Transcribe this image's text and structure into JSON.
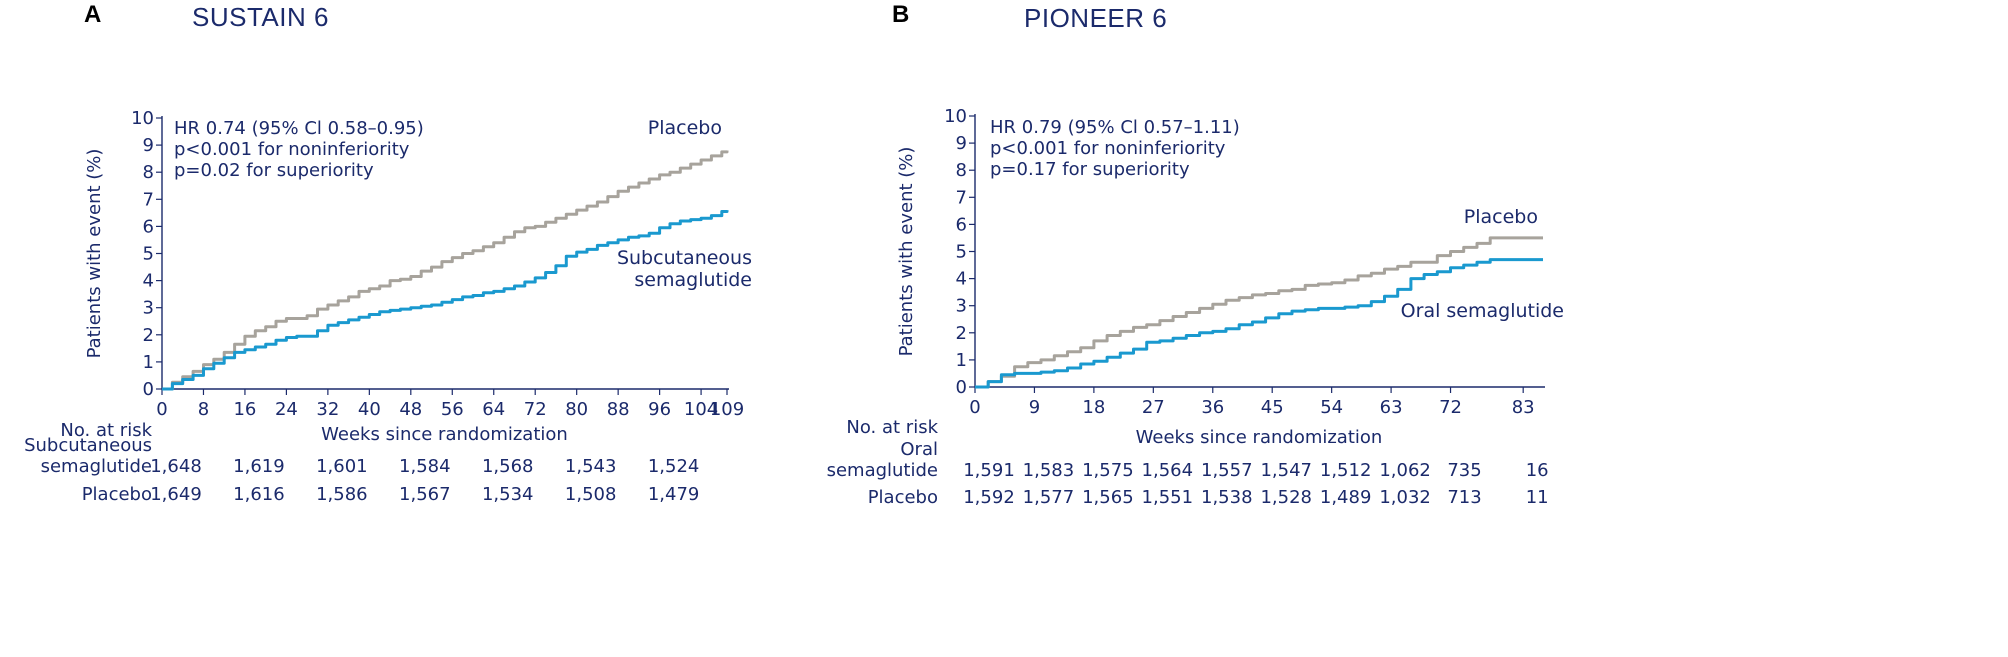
{
  "chart_data": [
    {
      "type": "line",
      "letter": "A",
      "title": "SUSTAIN 6",
      "xlabel": "Weeks since randomization",
      "ylabel": "Patients with event (%)",
      "xlim": [
        0,
        109
      ],
      "ylim": [
        0,
        10
      ],
      "xticks": [
        0,
        8,
        16,
        24,
        32,
        40,
        48,
        56,
        64,
        72,
        80,
        88,
        96,
        104,
        109
      ],
      "xtick_labels": [
        "0",
        "8",
        "16",
        "24",
        "32",
        "40",
        "48",
        "56",
        "64",
        "72",
        "80",
        "88",
        "96",
        "104",
        "109"
      ],
      "yticks": [
        0,
        1,
        2,
        3,
        4,
        5,
        6,
        7,
        8,
        9,
        10
      ],
      "ytick_labels": [
        "0",
        "1",
        "2",
        "3",
        "4",
        "5",
        "6",
        "7",
        "8",
        "9",
        "10"
      ],
      "annotations": [
        "HR 0.74 (95% Cl 0.58–0.95)",
        "p<0.001 for noninferiority",
        "p=0.02 for superiority"
      ],
      "series": [
        {
          "name": "Placebo",
          "label_lines": [
            "Placebo"
          ],
          "color": "#a7a39c",
          "x": [
            0,
            2,
            4,
            6,
            8,
            10,
            12,
            14,
            16,
            18,
            20,
            22,
            24,
            26,
            28,
            30,
            32,
            34,
            36,
            38,
            40,
            42,
            44,
            46,
            48,
            50,
            52,
            54,
            56,
            58,
            60,
            62,
            64,
            66,
            68,
            70,
            72,
            74,
            76,
            78,
            80,
            82,
            84,
            86,
            88,
            90,
            92,
            94,
            96,
            98,
            100,
            102,
            104,
            106,
            108,
            109
          ],
          "values": [
            0,
            0.25,
            0.45,
            0.65,
            0.9,
            1.1,
            1.35,
            1.65,
            1.95,
            2.15,
            2.3,
            2.5,
            2.6,
            2.6,
            2.7,
            2.95,
            3.1,
            3.25,
            3.4,
            3.6,
            3.7,
            3.8,
            4.0,
            4.05,
            4.15,
            4.35,
            4.5,
            4.7,
            4.85,
            5.0,
            5.1,
            5.25,
            5.4,
            5.6,
            5.8,
            5.95,
            6.0,
            6.15,
            6.3,
            6.45,
            6.6,
            6.75,
            6.9,
            7.1,
            7.3,
            7.45,
            7.6,
            7.75,
            7.9,
            8.0,
            8.15,
            8.3,
            8.45,
            8.6,
            8.75,
            8.8
          ]
        },
        {
          "name": "Subcutaneous semaglutide",
          "label_lines": [
            "Subcutaneous",
            "semaglutide"
          ],
          "color": "#1a99cf",
          "x": [
            0,
            2,
            4,
            6,
            8,
            10,
            12,
            14,
            16,
            18,
            20,
            22,
            24,
            26,
            28,
            30,
            32,
            34,
            36,
            38,
            40,
            42,
            44,
            46,
            48,
            50,
            52,
            54,
            56,
            58,
            60,
            62,
            64,
            66,
            68,
            70,
            72,
            74,
            76,
            78,
            80,
            82,
            84,
            86,
            88,
            90,
            92,
            94,
            96,
            98,
            100,
            102,
            104,
            106,
            108,
            109
          ],
          "values": [
            0,
            0.2,
            0.35,
            0.5,
            0.75,
            0.95,
            1.15,
            1.35,
            1.45,
            1.55,
            1.65,
            1.8,
            1.9,
            1.95,
            1.95,
            2.15,
            2.35,
            2.45,
            2.55,
            2.65,
            2.75,
            2.85,
            2.9,
            2.95,
            3.0,
            3.05,
            3.1,
            3.2,
            3.3,
            3.4,
            3.45,
            3.55,
            3.6,
            3.7,
            3.8,
            3.95,
            4.1,
            4.3,
            4.55,
            4.9,
            5.05,
            5.15,
            5.3,
            5.4,
            5.5,
            5.6,
            5.65,
            5.75,
            5.95,
            6.1,
            6.2,
            6.25,
            6.3,
            6.4,
            6.55,
            6.6
          ]
        }
      ],
      "risk_table": {
        "header": "No. at risk",
        "columns_x": [
          0,
          16,
          32,
          48,
          64,
          80,
          96
        ],
        "rows": [
          {
            "label_lines": [
              "Subcutaneous",
              "semaglutide"
            ],
            "values": [
              "1,648",
              "1,619",
              "1,601",
              "1,584",
              "1,568",
              "1,543",
              "1,524"
            ]
          },
          {
            "label_lines": [
              "Placebo"
            ],
            "values": [
              "1,649",
              "1,616",
              "1,586",
              "1,567",
              "1,534",
              "1,508",
              "1,479"
            ]
          }
        ]
      }
    },
    {
      "type": "line",
      "letter": "B",
      "title": "PIONEER 6",
      "xlabel": "Weeks since randomization",
      "ylabel": "Patients with event (%)",
      "xlim": [
        0,
        86
      ],
      "ylim": [
        0,
        10
      ],
      "xticks": [
        0,
        9,
        18,
        27,
        36,
        45,
        54,
        63,
        72,
        83
      ],
      "xtick_labels": [
        "0",
        "9",
        "18",
        "27",
        "36",
        "45",
        "54",
        "63",
        "72",
        "83"
      ],
      "yticks": [
        0,
        1,
        2,
        3,
        4,
        5,
        6,
        7,
        8,
        9,
        10
      ],
      "ytick_labels": [
        "0",
        "1",
        "2",
        "3",
        "4",
        "5",
        "6",
        "7",
        "8",
        "9",
        "10"
      ],
      "annotations": [
        "HR 0.79 (95% Cl 0.57–1.11)",
        "p<0.001 for noninferiority",
        "p=0.17 for superiority"
      ],
      "series": [
        {
          "name": "Placebo",
          "label_lines": [
            "Placebo"
          ],
          "color": "#a7a39c",
          "x": [
            0,
            2,
            4,
            6,
            8,
            10,
            12,
            14,
            16,
            18,
            20,
            22,
            24,
            26,
            28,
            30,
            32,
            34,
            36,
            38,
            40,
            42,
            44,
            46,
            48,
            50,
            52,
            54,
            56,
            58,
            60,
            62,
            64,
            66,
            68,
            70,
            72,
            74,
            76,
            78,
            80,
            82,
            84,
            86
          ],
          "values": [
            0,
            0.2,
            0.4,
            0.75,
            0.9,
            1.0,
            1.15,
            1.3,
            1.45,
            1.7,
            1.9,
            2.05,
            2.2,
            2.3,
            2.45,
            2.6,
            2.75,
            2.9,
            3.05,
            3.2,
            3.3,
            3.4,
            3.45,
            3.55,
            3.6,
            3.75,
            3.8,
            3.85,
            3.95,
            4.1,
            4.2,
            4.35,
            4.45,
            4.6,
            4.6,
            4.85,
            5.0,
            5.15,
            5.3,
            5.5,
            5.5,
            5.5,
            5.5,
            5.5
          ]
        },
        {
          "name": "Oral semaglutide",
          "label_lines": [
            "Oral semaglutide"
          ],
          "color": "#1a99cf",
          "x": [
            0,
            2,
            4,
            6,
            8,
            10,
            12,
            14,
            16,
            18,
            20,
            22,
            24,
            26,
            28,
            30,
            32,
            34,
            36,
            38,
            40,
            42,
            44,
            46,
            48,
            50,
            52,
            54,
            56,
            58,
            60,
            62,
            64,
            66,
            68,
            70,
            72,
            74,
            76,
            78,
            80,
            82,
            84,
            86
          ],
          "values": [
            0,
            0.2,
            0.45,
            0.5,
            0.5,
            0.55,
            0.6,
            0.7,
            0.85,
            0.95,
            1.1,
            1.25,
            1.4,
            1.65,
            1.7,
            1.8,
            1.9,
            2.0,
            2.05,
            2.15,
            2.3,
            2.4,
            2.55,
            2.7,
            2.8,
            2.85,
            2.9,
            2.9,
            2.95,
            3.0,
            3.15,
            3.35,
            3.6,
            4.0,
            4.15,
            4.25,
            4.4,
            4.5,
            4.6,
            4.7,
            4.7,
            4.7,
            4.7,
            4.7
          ]
        }
      ],
      "risk_table": {
        "header": "No. at risk",
        "columns_x": [
          0,
          9,
          18,
          27,
          36,
          45,
          54,
          63,
          72,
          83
        ],
        "rows": [
          {
            "label_lines": [
              "Oral",
              "semaglutide"
            ],
            "values": [
              "1,591",
              "1,583",
              "1,575",
              "1,564",
              "1,557",
              "1,547",
              "1,512",
              "1,062",
              "735",
              "16"
            ]
          },
          {
            "label_lines": [
              "Placebo"
            ],
            "values": [
              "1,592",
              "1,577",
              "1,565",
              "1,551",
              "1,538",
              "1,528",
              "1,489",
              "1,032",
              "713",
              "11"
            ]
          }
        ]
      }
    }
  ]
}
